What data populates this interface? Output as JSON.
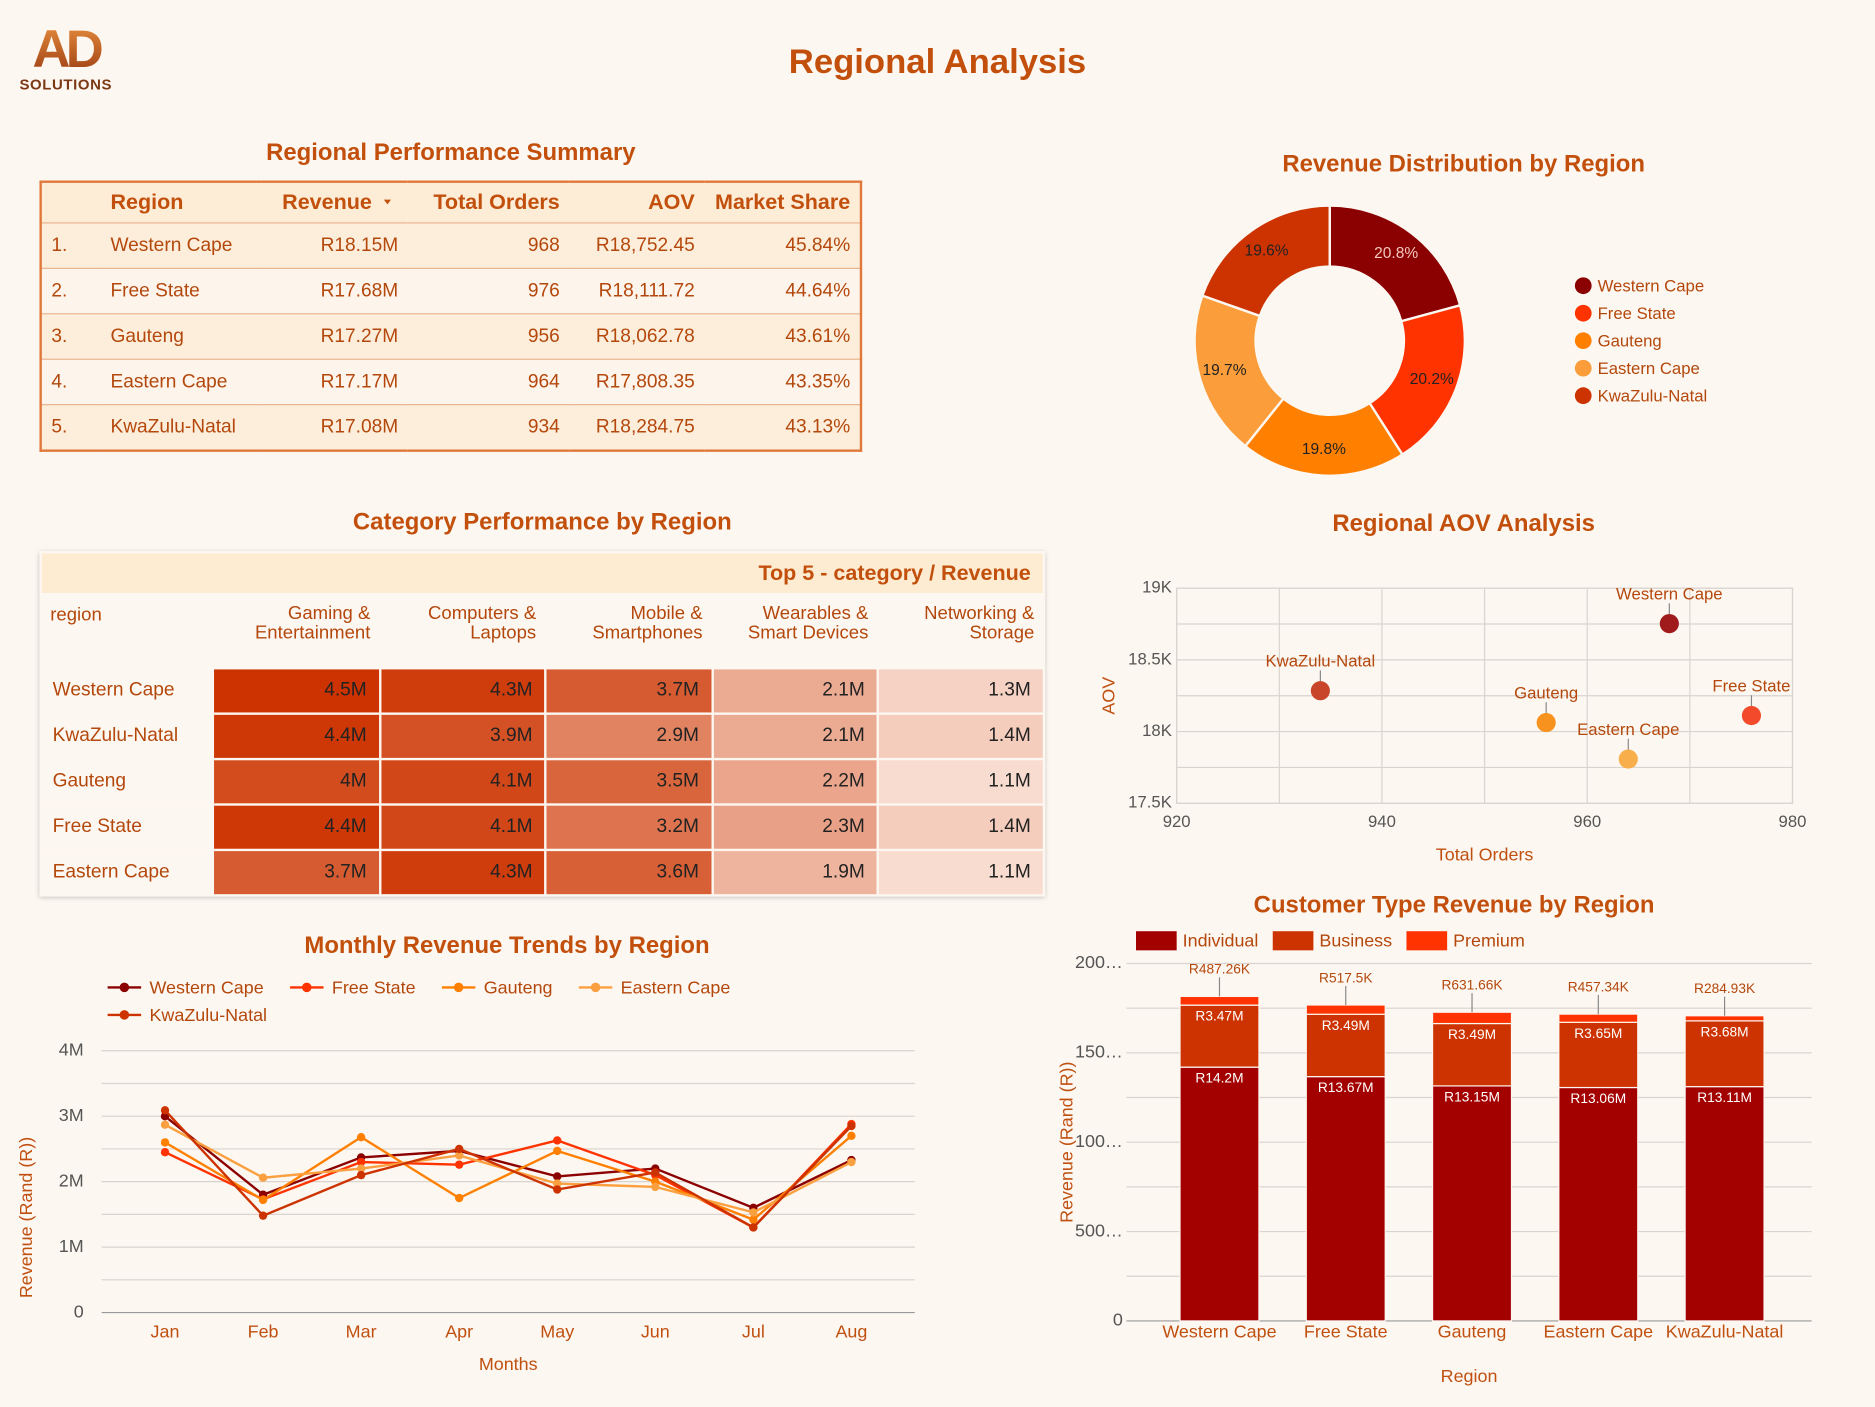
{
  "header": {
    "logo": "AD",
    "logo_subtitle": "SOLUTIONS",
    "title": "Regional Analysis"
  },
  "summary_table": {
    "title": "Regional Performance Summary",
    "columns": [
      "Region",
      "Revenue",
      "Total Orders",
      "AOV",
      "Market Share"
    ],
    "rows": [
      [
        "1.",
        "Western Cape",
        "R18.15M",
        "968",
        "R18,752.45",
        "45.84%"
      ],
      [
        "2.",
        "Free State",
        "R17.68M",
        "976",
        "R18,111.72",
        "44.64%"
      ],
      [
        "3.",
        "Gauteng",
        "R17.27M",
        "956",
        "R18,062.78",
        "43.61%"
      ],
      [
        "4.",
        "Eastern Cape",
        "R17.17M",
        "964",
        "R17,808.35",
        "43.35%"
      ],
      [
        "5.",
        "KwaZulu-Natal",
        "R17.08M",
        "934",
        "R18,284.75",
        "43.13%"
      ]
    ]
  },
  "category_table": {
    "title": "Category Performance by Region",
    "caption": "Top 5 - category / Revenue",
    "row_header": "region",
    "columns": [
      "Gaming & Entertainment",
      "Computers & Laptops",
      "Mobile & Smartphones",
      "Wearables & Smart Devices",
      "Networking & Storage"
    ],
    "rows": [
      "Western Cape",
      "KwaZulu-Natal",
      "Gauteng",
      "Free State",
      "Eastern Cape"
    ],
    "values": [
      [
        4500000,
        4300000,
        3700000,
        2100000,
        1300000
      ],
      [
        4400000,
        3900000,
        2900000,
        2100000,
        1400000
      ],
      [
        4000000,
        4100000,
        3500000,
        2200000,
        1100000
      ],
      [
        4400000,
        4100000,
        3200000,
        2300000,
        1400000
      ],
      [
        3700000,
        4300000,
        3600000,
        1900000,
        1100000
      ]
    ],
    "value_labels": [
      [
        "4.5M",
        "4.3M",
        "3.7M",
        "2.1M",
        "1.3M"
      ],
      [
        "4.4M",
        "3.9M",
        "2.9M",
        "2.1M",
        "1.4M"
      ],
      [
        "4M",
        "4.1M",
        "3.5M",
        "2.2M",
        "1.1M"
      ],
      [
        "4.4M",
        "4.1M",
        "3.2M",
        "2.3M",
        "1.4M"
      ],
      [
        "3.7M",
        "4.3M",
        "3.6M",
        "1.9M",
        "1.1M"
      ]
    ],
    "color_scale": [
      "#f8dccf",
      "#cc3300"
    ]
  },
  "chart_data": [
    {
      "type": "pie",
      "hole": true,
      "title": "Revenue Distribution by Region",
      "categories": [
        "Western Cape",
        "Free State",
        "Gauteng",
        "Eastern Cape",
        "KwaZulu-Natal"
      ],
      "values": [
        20.8,
        20.2,
        19.8,
        19.7,
        19.6
      ],
      "value_labels": [
        "20.8%",
        "20.2%",
        "19.8%",
        "19.7%",
        "19.6%"
      ],
      "colors": [
        "#8b0000",
        "#ff3300",
        "#ff8000",
        "#fb9d3a",
        "#cc3300"
      ],
      "legend": "right"
    },
    {
      "type": "scatter",
      "title": "Regional AOV Analysis",
      "xlabel": "Total Orders",
      "ylabel": "AOV",
      "x": [
        968,
        934,
        956,
        976,
        964
      ],
      "values": [
        18752.45,
        18284.75,
        18062.78,
        18111.72,
        17808.35
      ],
      "point_labels": [
        "Western Cape",
        "KwaZulu-Natal",
        "Gauteng",
        "Free State",
        "Eastern Cape"
      ],
      "colors": [
        "#a01c1c",
        "#c8452a",
        "#f7921e",
        "#f24a2a",
        "#f9ae4c"
      ],
      "xlim": [
        920,
        980
      ],
      "xticks": [
        920,
        940,
        960,
        980
      ],
      "x_minor_ticks": [
        930,
        950,
        970
      ],
      "ylim": [
        17500,
        19000
      ],
      "yticks": [
        {
          "value": 17500,
          "label": "17.5K"
        },
        {
          "value": 18000,
          "label": "18K"
        },
        {
          "value": 18500,
          "label": "18.5K"
        },
        {
          "value": 19000,
          "label": "19K"
        }
      ],
      "y_minor_ticks": [
        17750,
        18250,
        18750
      ],
      "grid": true
    },
    {
      "type": "line",
      "title": "Monthly Revenue Trends by Region",
      "xlabel": "Months",
      "ylabel": "Revenue (Rand (R))",
      "categories": [
        "Jan",
        "Feb",
        "Mar",
        "Apr",
        "May",
        "Jun",
        "Jul",
        "Aug"
      ],
      "series": [
        {
          "name": "Western Cape",
          "color": "#8b0000",
          "values": [
            3000000,
            1800000,
            2370000,
            2470000,
            2080000,
            2200000,
            1600000,
            2330000
          ]
        },
        {
          "name": "Free State",
          "color": "#ff3300",
          "values": [
            2450000,
            1730000,
            2300000,
            2260000,
            2630000,
            2100000,
            1300000,
            2880000
          ]
        },
        {
          "name": "Gauteng",
          "color": "#ff8000",
          "values": [
            2600000,
            1720000,
            2680000,
            1750000,
            2470000,
            2000000,
            1420000,
            2700000
          ]
        },
        {
          "name": "Eastern Cape",
          "color": "#fba040",
          "values": [
            2870000,
            2060000,
            2200000,
            2400000,
            1970000,
            1920000,
            1530000,
            2300000
          ]
        },
        {
          "name": "KwaZulu-Natal",
          "color": "#cc3300",
          "values": [
            3090000,
            1480000,
            2100000,
            2500000,
            1880000,
            2140000,
            1300000,
            2850000
          ]
        }
      ],
      "ylim": [
        0,
        4000000
      ],
      "yticks": [
        0,
        {
          "value": 1000000,
          "label": "1M"
        },
        {
          "value": 2000000,
          "label": "2M"
        },
        {
          "value": 3000000,
          "label": "3M"
        },
        {
          "value": 4000000,
          "label": "4M"
        }
      ],
      "y_minor_ticks": [
        500000,
        1500000,
        2500000,
        3500000
      ],
      "grid": true,
      "legend": "top"
    },
    {
      "type": "bar",
      "stacked": true,
      "title": "Customer Type Revenue by Region",
      "xlabel": "Region",
      "ylabel": "Revenue (Rand (R))",
      "categories": [
        "Western Cape",
        "Free State",
        "Gauteng",
        "Eastern Cape",
        "KwaZulu-Natal"
      ],
      "series": [
        {
          "name": "Individual",
          "color": "#a30000",
          "values": [
            14200000,
            13670000,
            13150000,
            13060000,
            13110000
          ],
          "value_labels": [
            "R14.2M",
            "R13.67M",
            "R13.15M",
            "R13.06M",
            "R13.11M"
          ]
        },
        {
          "name": "Business",
          "color": "#cc3300",
          "values": [
            3470000,
            3490000,
            3490000,
            3650000,
            3680000
          ],
          "value_labels": [
            "R3.47M",
            "R3.49M",
            "R3.49M",
            "R3.65M",
            "R3.68M"
          ]
        },
        {
          "name": "Premium",
          "color": "#ff3300",
          "values": [
            487260,
            517500,
            631660,
            457340,
            284930
          ],
          "value_labels": [
            "R487.26K",
            "R517.5K",
            "R631.66K",
            "R457.34K",
            "R284.93K"
          ]
        }
      ],
      "ylim": [
        0,
        20000000
      ],
      "yticks": [
        0,
        {
          "value": 5000000,
          "label": "500…"
        },
        {
          "value": 10000000,
          "label": "100…"
        },
        {
          "value": 15000000,
          "label": "150…"
        },
        {
          "value": 20000000,
          "label": "200…"
        }
      ],
      "y_minor_ticks": [
        2500000,
        7500000,
        12500000,
        17500000
      ],
      "grid": true,
      "legend": "top"
    }
  ]
}
